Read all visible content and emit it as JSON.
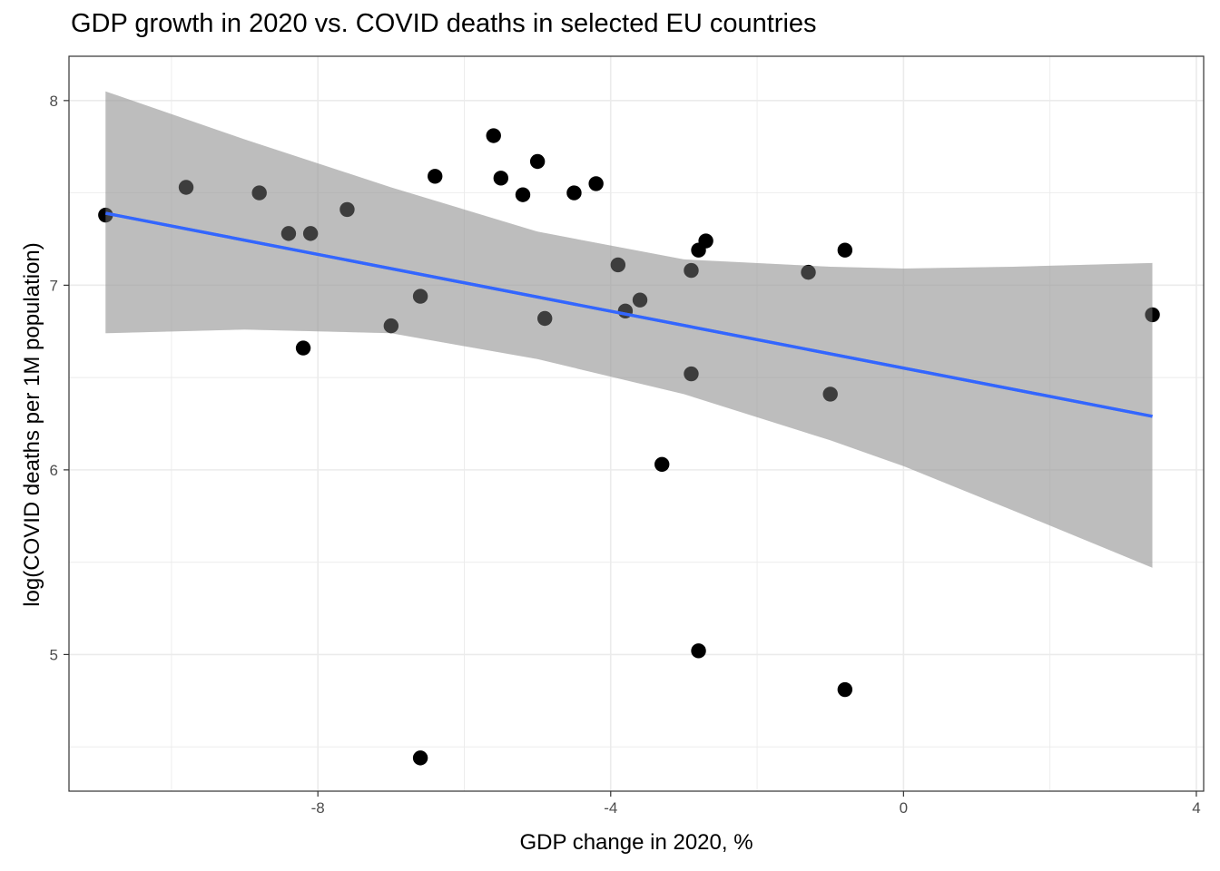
{
  "chart_data": {
    "type": "scatter",
    "title": "GDP growth in 2020 vs. COVID deaths in selected EU countries",
    "xlabel": "GDP change in 2020, %",
    "ylabel": "log(COVID deaths per 1M population)",
    "xlim": [
      -11.4,
      4.1
    ],
    "ylim": [
      4.26,
      8.24
    ],
    "xticks": [
      -8,
      -4,
      0,
      4
    ],
    "yticks": [
      5,
      6,
      7,
      8
    ],
    "grid": true,
    "legend": "none",
    "points": [
      {
        "x": -10.9,
        "y": 7.38
      },
      {
        "x": -9.8,
        "y": 7.53
      },
      {
        "x": -8.8,
        "y": 7.5
      },
      {
        "x": -8.4,
        "y": 7.28
      },
      {
        "x": -8.2,
        "y": 6.66
      },
      {
        "x": -8.1,
        "y": 7.28
      },
      {
        "x": -7.6,
        "y": 7.41
      },
      {
        "x": -7.0,
        "y": 6.78
      },
      {
        "x": -6.6,
        "y": 6.94
      },
      {
        "x": -6.6,
        "y": 4.44
      },
      {
        "x": -6.4,
        "y": 7.59
      },
      {
        "x": -5.6,
        "y": 7.81
      },
      {
        "x": -5.5,
        "y": 7.58
      },
      {
        "x": -5.2,
        "y": 7.49
      },
      {
        "x": -5.0,
        "y": 7.67
      },
      {
        "x": -4.9,
        "y": 6.82
      },
      {
        "x": -4.5,
        "y": 7.5
      },
      {
        "x": -4.2,
        "y": 7.55
      },
      {
        "x": -3.9,
        "y": 7.11
      },
      {
        "x": -3.8,
        "y": 6.86
      },
      {
        "x": -3.6,
        "y": 6.92
      },
      {
        "x": -3.3,
        "y": 6.03
      },
      {
        "x": -2.9,
        "y": 7.08
      },
      {
        "x": -2.9,
        "y": 6.52
      },
      {
        "x": -2.8,
        "y": 7.19
      },
      {
        "x": -2.8,
        "y": 5.02
      },
      {
        "x": -2.7,
        "y": 7.24
      },
      {
        "x": -1.3,
        "y": 7.07
      },
      {
        "x": -1.0,
        "y": 6.41
      },
      {
        "x": -0.8,
        "y": 7.19
      },
      {
        "x": -0.8,
        "y": 4.81
      },
      {
        "x": 3.4,
        "y": 6.84
      }
    ],
    "fit_line": {
      "x": [
        -10.9,
        3.4
      ],
      "y": [
        7.39,
        6.29
      ]
    },
    "confidence_band": {
      "x": [
        -10.9,
        -9.0,
        -7.0,
        -5.0,
        -3.0,
        -1.0,
        0.0,
        1.5,
        3.4
      ],
      "upper": [
        8.05,
        7.79,
        7.53,
        7.29,
        7.14,
        7.1,
        7.09,
        7.1,
        7.12
      ],
      "lower": [
        6.74,
        6.76,
        6.74,
        6.6,
        6.41,
        6.16,
        6.02,
        5.78,
        5.47
      ]
    },
    "colors": {
      "points": "#000000",
      "fit_line": "#3366ff",
      "band": "#999999",
      "grid": "#ebebeb",
      "panel_border": "#333333"
    }
  }
}
